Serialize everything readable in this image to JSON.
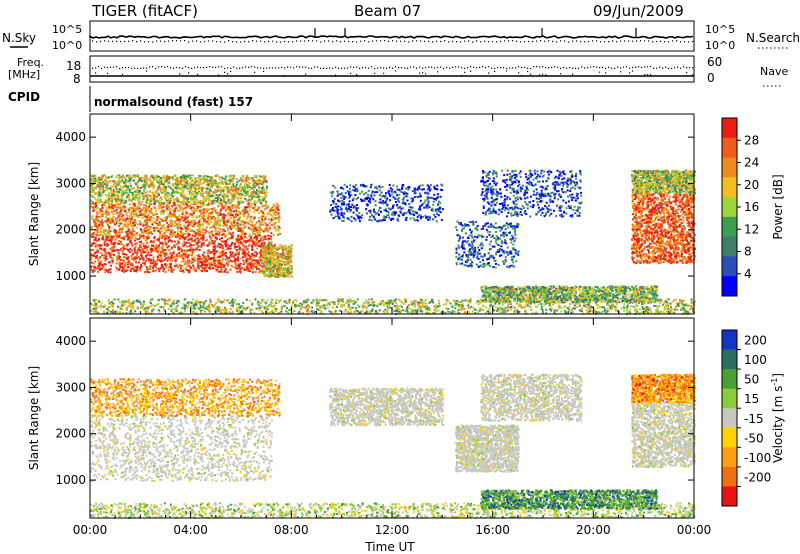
{
  "header": {
    "title": "TIGER (fitACF)",
    "beam": "Beam 07",
    "date": "09/Jun/2009"
  },
  "strip1": {
    "left_label": "N.Sky",
    "left_ticks": [
      "10^5",
      "10^0"
    ],
    "right_label": "N.Search",
    "right_ticks": [
      "10^5",
      "10^0"
    ]
  },
  "strip2": {
    "left_label_1": "Freq.",
    "left_label_2": "[MHz]",
    "left_ticks": [
      "18",
      "8"
    ],
    "right_label": "Nave",
    "right_ticks": [
      "60",
      "0"
    ]
  },
  "cpid": {
    "label": "CPID",
    "value": "normalsound (fast) 157"
  },
  "colors": {
    "power": [
      "#0000ff",
      "#2a4fb8",
      "#3f7d6a",
      "#3aa050",
      "#a0d43c",
      "#f0c020",
      "#f08a1c",
      "#f05a1a",
      "#e61e14"
    ],
    "velocity": [
      "#1633c8",
      "#2a6e60",
      "#46a032",
      "#8ccc3c",
      "#c8c8c0",
      "#ffd200",
      "#ffa014",
      "#f06e14",
      "#e61414"
    ]
  },
  "chart_data": [
    {
      "type": "heatmap",
      "quantity": "Power",
      "ylabel": "Slant Range [km]",
      "ylim": [
        180,
        4500
      ],
      "y_ticks": [
        "1000",
        "2000",
        "3000",
        "4000"
      ],
      "x_ticks": [
        "00:00",
        "04:00",
        "08:00",
        "12:00",
        "16:00",
        "20:00",
        "00:00"
      ],
      "colorbar_label": "Power [dB]",
      "colorbar_ticks": [
        "4",
        "8",
        "12",
        "16",
        "20",
        "24",
        "28"
      ],
      "scatter_regions": [
        {
          "x": [
            0.0,
            7.2
          ],
          "y": [
            1100,
            1900
          ],
          "level": 0.9
        },
        {
          "x": [
            0.0,
            7.5
          ],
          "y": [
            1900,
            2600
          ],
          "level": 0.75
        },
        {
          "x": [
            0.0,
            7.0
          ],
          "y": [
            2600,
            3200
          ],
          "level": 0.55
        },
        {
          "x": [
            6.8,
            8.0
          ],
          "y": [
            1000,
            1700
          ],
          "level": 0.6
        },
        {
          "x": [
            0.0,
            24.0
          ],
          "y": [
            200,
            520
          ],
          "level": 0.5
        },
        {
          "x": [
            15.5,
            22.5
          ],
          "y": [
            450,
            800
          ],
          "level": 0.45
        },
        {
          "x": [
            9.5,
            14.0
          ],
          "y": [
            2200,
            3000
          ],
          "level": 0.15
        },
        {
          "x": [
            14.5,
            17.0
          ],
          "y": [
            1200,
            2200
          ],
          "level": 0.2
        },
        {
          "x": [
            15.5,
            19.5
          ],
          "y": [
            2300,
            3300
          ],
          "level": 0.15
        },
        {
          "x": [
            21.5,
            24.0
          ],
          "y": [
            1300,
            2800
          ],
          "level": 0.85
        },
        {
          "x": [
            21.5,
            24.0
          ],
          "y": [
            2800,
            3300
          ],
          "level": 0.5
        }
      ]
    },
    {
      "type": "heatmap",
      "quantity": "Velocity",
      "ylabel": "Slant Range [km]",
      "ylim": [
        180,
        4500
      ],
      "y_ticks": [
        "1000",
        "2000",
        "3000",
        "4000"
      ],
      "x_ticks": [
        "00:00",
        "04:00",
        "08:00",
        "12:00",
        "16:00",
        "20:00",
        "00:00"
      ],
      "xlabel": "Time UT",
      "colorbar_label": "Velocity [m s-1]",
      "colorbar_ticks": [
        "200",
        "100",
        "50",
        "15",
        "-15",
        "-50",
        "-100",
        "-200"
      ],
      "scatter_regions": [
        {
          "x": [
            0.0,
            7.2
          ],
          "y": [
            1000,
            2400
          ],
          "level": 0.5
        },
        {
          "x": [
            0.0,
            7.5
          ],
          "y": [
            2400,
            3200
          ],
          "level": 0.3
        },
        {
          "x": [
            0.0,
            24.0
          ],
          "y": [
            200,
            520
          ],
          "level": 0.55
        },
        {
          "x": [
            15.5,
            22.5
          ],
          "y": [
            400,
            800
          ],
          "level": 0.75
        },
        {
          "x": [
            9.5,
            14.0
          ],
          "y": [
            2200,
            3000
          ],
          "level": 0.5
        },
        {
          "x": [
            14.5,
            17.0
          ],
          "y": [
            1200,
            2200
          ],
          "level": 0.5
        },
        {
          "x": [
            15.5,
            19.5
          ],
          "y": [
            2300,
            3300
          ],
          "level": 0.5
        },
        {
          "x": [
            21.5,
            24.0
          ],
          "y": [
            1300,
            2700
          ],
          "level": 0.5
        },
        {
          "x": [
            21.5,
            24.0
          ],
          "y": [
            2700,
            3300
          ],
          "level": 0.25
        }
      ]
    }
  ]
}
